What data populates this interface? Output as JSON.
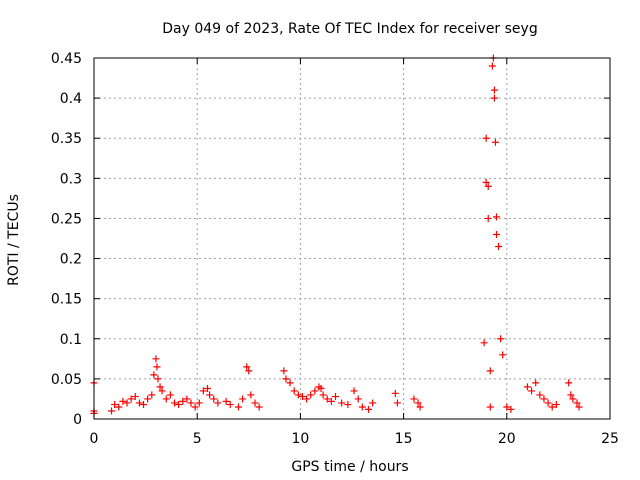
{
  "chart_data": {
    "type": "scatter",
    "title": "Day 049 of 2023, Rate Of TEC Index for receiver seyg",
    "xlabel": "GPS time / hours",
    "ylabel": "ROTI / TECUs",
    "xlim": [
      0,
      25
    ],
    "ylim": [
      0,
      0.45
    ],
    "x_ticks": [
      0,
      5,
      10,
      15,
      20,
      25
    ],
    "x_tick_labels": [
      "0",
      "5",
      "10",
      "15",
      "20",
      "25"
    ],
    "y_ticks": [
      0,
      0.05,
      0.1,
      0.15,
      0.2,
      0.25,
      0.3,
      0.35,
      0.4,
      0.45
    ],
    "y_tick_labels": [
      "0",
      "0.05",
      "0.1",
      "0.15",
      "0.2",
      "0.25",
      "0.3",
      "0.35",
      "0.4",
      "0.45"
    ],
    "grid": true,
    "marker": "+",
    "color": "#ff0000",
    "series": [
      {
        "name": "ROTI",
        "x": [
          0.0,
          0.0,
          0.0,
          0.85,
          1.0,
          1.2,
          1.4,
          1.6,
          1.8,
          2.0,
          2.2,
          2.4,
          2.6,
          2.8,
          2.9,
          3.0,
          3.05,
          3.1,
          3.2,
          3.3,
          3.5,
          3.7,
          3.9,
          4.1,
          4.3,
          4.5,
          4.7,
          4.9,
          5.1,
          5.3,
          5.5,
          5.6,
          5.8,
          6.0,
          6.4,
          6.6,
          7.0,
          7.2,
          7.4,
          7.5,
          7.6,
          7.8,
          8.0,
          9.2,
          9.3,
          9.5,
          9.7,
          9.9,
          10.1,
          10.3,
          10.5,
          10.7,
          10.9,
          11.0,
          11.1,
          11.3,
          11.5,
          11.7,
          12.0,
          12.3,
          12.6,
          12.8,
          13.0,
          13.3,
          13.5,
          14.6,
          14.7,
          15.5,
          15.7,
          15.8,
          18.9,
          19.0,
          19.0,
          19.1,
          19.1,
          19.2,
          19.2,
          19.3,
          19.35,
          19.4,
          19.4,
          19.45,
          19.5,
          19.5,
          19.6,
          19.7,
          19.8,
          20.0,
          20.2,
          21.0,
          21.2,
          21.4,
          21.6,
          21.8,
          22.0,
          22.2,
          22.4,
          23.0,
          23.1,
          23.2,
          23.4,
          23.5
        ],
        "y": [
          0.045,
          0.01,
          0.007,
          0.01,
          0.018,
          0.015,
          0.022,
          0.02,
          0.025,
          0.028,
          0.02,
          0.018,
          0.025,
          0.03,
          0.055,
          0.075,
          0.065,
          0.05,
          0.04,
          0.035,
          0.025,
          0.03,
          0.02,
          0.018,
          0.022,
          0.025,
          0.02,
          0.015,
          0.02,
          0.035,
          0.038,
          0.03,
          0.025,
          0.02,
          0.022,
          0.018,
          0.015,
          0.025,
          0.065,
          0.06,
          0.03,
          0.02,
          0.015,
          0.06,
          0.05,
          0.045,
          0.035,
          0.03,
          0.028,
          0.025,
          0.03,
          0.035,
          0.04,
          0.038,
          0.03,
          0.025,
          0.022,
          0.028,
          0.02,
          0.018,
          0.035,
          0.025,
          0.015,
          0.012,
          0.02,
          0.032,
          0.02,
          0.025,
          0.02,
          0.015,
          0.095,
          0.35,
          0.295,
          0.29,
          0.25,
          0.06,
          0.015,
          0.44,
          0.45,
          0.41,
          0.4,
          0.345,
          0.252,
          0.23,
          0.215,
          0.1,
          0.08,
          0.015,
          0.012,
          0.04,
          0.035,
          0.045,
          0.03,
          0.025,
          0.02,
          0.015,
          0.018,
          0.045,
          0.03,
          0.025,
          0.02,
          0.015
        ]
      }
    ]
  }
}
